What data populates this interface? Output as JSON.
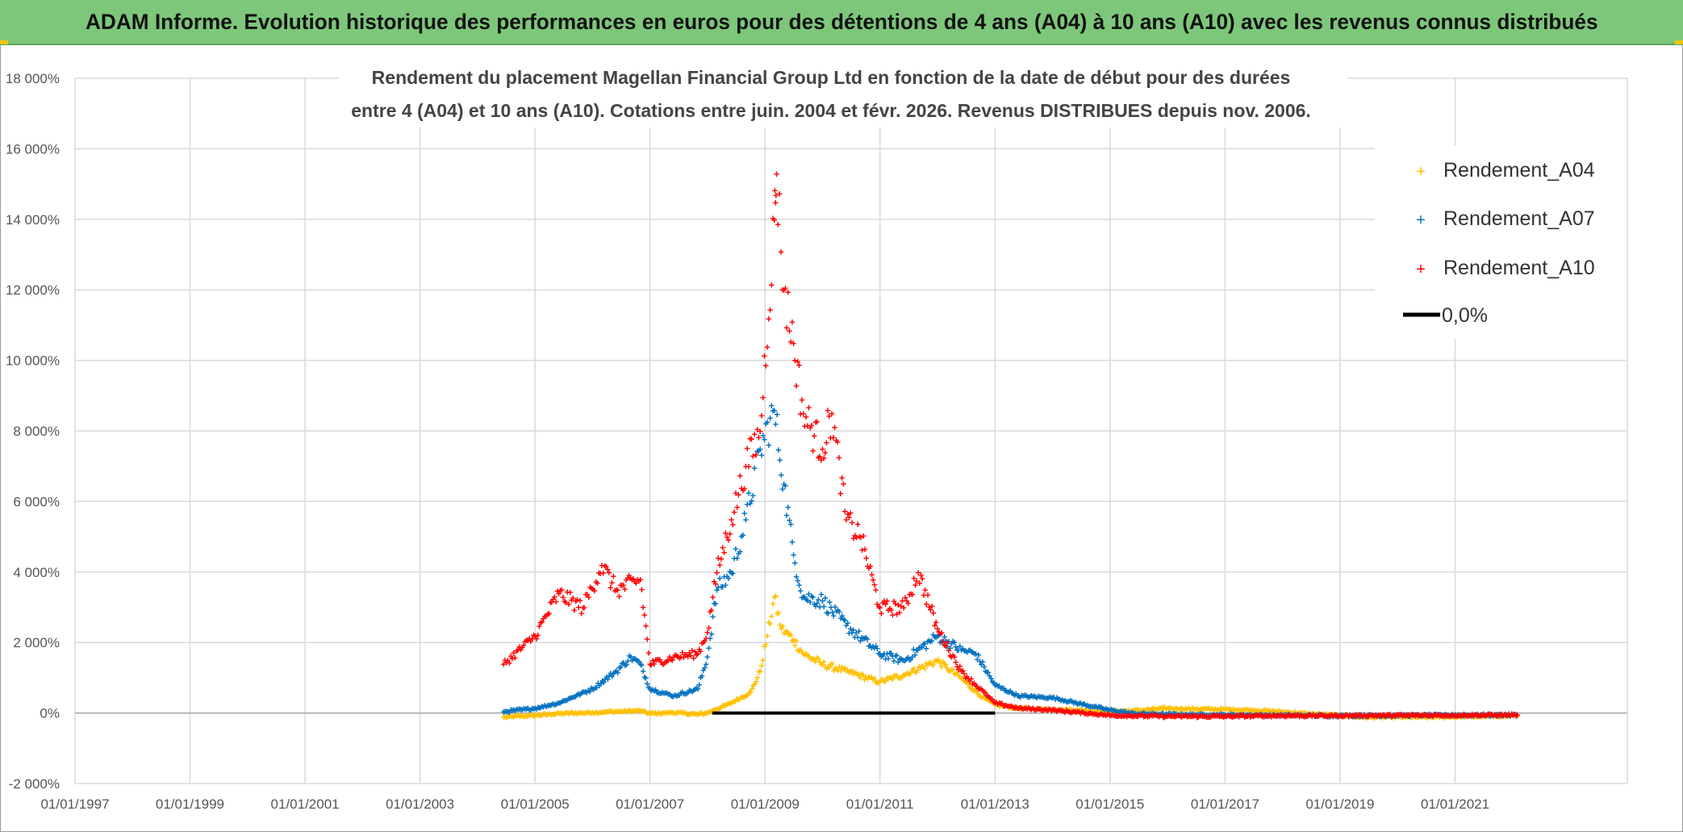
{
  "banner": {
    "title": "ADAM Informe. Evolution historique des performances en euros pour des détentions de 4 ans (A04) à 10 ans (A10) avec les revenus connus distribués"
  },
  "colors": {
    "banner_bg": "#7dc77a",
    "A04": "#ffc000",
    "A07": "#0070c0",
    "A10": "#ff0000",
    "zero_line": "#000000",
    "grid": "#d9d9d9",
    "axis": "#a6a6a6"
  },
  "chart_data": {
    "type": "scatter",
    "title_lines": [
      "Rendement du placement Magellan Financial Group Ltd en fonction de la date de début pour des durées",
      "entre 4 (A04) et 10 ans (A10). Cotations entre juin. 2004 et févr. 2026. Revenus DISTRIBUES depuis nov. 2006."
    ],
    "x_axis": {
      "type": "date",
      "min": "1997-01-01",
      "max": "2023-12-31",
      "ticks": [
        "01/01/1997",
        "01/01/1999",
        "01/01/2001",
        "01/01/2003",
        "01/01/2005",
        "01/01/2007",
        "01/01/2009",
        "01/01/2011",
        "01/01/2013",
        "01/01/2015",
        "01/01/2017",
        "01/01/2019",
        "01/01/2021"
      ],
      "tick_dates": [
        "1997-01-01",
        "1999-01-01",
        "2001-01-01",
        "2003-01-01",
        "2005-01-01",
        "2007-01-01",
        "2009-01-01",
        "2011-01-01",
        "2013-01-01",
        "2015-01-01",
        "2017-01-01",
        "2019-01-01",
        "2021-01-01"
      ]
    },
    "y_axis": {
      "min": -2000,
      "max": 18000,
      "unit": "%",
      "ticks": [
        -2000,
        0,
        2000,
        4000,
        6000,
        8000,
        10000,
        12000,
        14000,
        16000,
        18000
      ],
      "tick_labels": [
        "-2 000%",
        "0%",
        "2 000%",
        "4 000%",
        "6 000%",
        "8 000%",
        "10 000%",
        "12 000%",
        "14 000%",
        "16 000%",
        "18 000%"
      ]
    },
    "grid": true,
    "legend_position": "top-right",
    "series": [
      {
        "name": "Rendement_A04",
        "marker": "+",
        "points": [
          [
            "2004-06-15",
            -100
          ],
          [
            "2005-01-01",
            -50
          ],
          [
            "2005-06-01",
            0
          ],
          [
            "2006-01-01",
            30
          ],
          [
            "2006-06-01",
            60
          ],
          [
            "2006-11-01",
            80
          ],
          [
            "2007-01-01",
            0
          ],
          [
            "2007-06-01",
            30
          ],
          [
            "2007-11-01",
            -20
          ],
          [
            "2008-01-01",
            20
          ],
          [
            "2008-06-01",
            300
          ],
          [
            "2008-10-01",
            600
          ],
          [
            "2008-12-01",
            1200
          ],
          [
            "2009-01-15",
            2200
          ],
          [
            "2009-03-01",
            3300
          ],
          [
            "2009-04-15",
            2400
          ],
          [
            "2009-07-01",
            2100
          ],
          [
            "2009-09-01",
            1700
          ],
          [
            "2010-01-01",
            1400
          ],
          [
            "2010-06-01",
            1200
          ],
          [
            "2011-01-01",
            900
          ],
          [
            "2011-06-01",
            1100
          ],
          [
            "2012-01-01",
            1500
          ],
          [
            "2012-03-01",
            1300
          ],
          [
            "2012-06-01",
            1000
          ],
          [
            "2012-10-01",
            500
          ],
          [
            "2013-01-01",
            250
          ],
          [
            "2013-06-01",
            150
          ],
          [
            "2014-01-01",
            120
          ],
          [
            "2014-06-01",
            100
          ],
          [
            "2015-01-01",
            60
          ],
          [
            "2015-06-01",
            80
          ],
          [
            "2016-01-01",
            150
          ],
          [
            "2016-06-01",
            130
          ],
          [
            "2017-01-01",
            120
          ],
          [
            "2017-06-01",
            100
          ],
          [
            "2018-01-01",
            50
          ],
          [
            "2018-06-01",
            0
          ],
          [
            "2019-06-01",
            -100
          ],
          [
            "2020-06-01",
            -100
          ],
          [
            "2021-06-01",
            -80
          ],
          [
            "2022-02-01",
            -60
          ]
        ]
      },
      {
        "name": "Rendement_A07",
        "marker": "+",
        "points": [
          [
            "2004-06-15",
            50
          ],
          [
            "2005-01-01",
            150
          ],
          [
            "2005-06-01",
            300
          ],
          [
            "2006-01-01",
            700
          ],
          [
            "2006-06-01",
            1200
          ],
          [
            "2006-09-01",
            1600
          ],
          [
            "2006-11-01",
            1400
          ],
          [
            "2007-01-01",
            700
          ],
          [
            "2007-06-01",
            500
          ],
          [
            "2007-11-01",
            700
          ],
          [
            "2008-01-01",
            1600
          ],
          [
            "2008-03-01",
            3500
          ],
          [
            "2008-06-01",
            4000
          ],
          [
            "2008-09-01",
            5500
          ],
          [
            "2008-12-01",
            7500
          ],
          [
            "2009-03-01",
            8600
          ],
          [
            "2009-05-01",
            6500
          ],
          [
            "2009-07-01",
            4500
          ],
          [
            "2009-09-01",
            3300
          ],
          [
            "2010-01-01",
            3200
          ],
          [
            "2010-06-01",
            2500
          ],
          [
            "2011-01-01",
            1700
          ],
          [
            "2011-06-01",
            1500
          ],
          [
            "2012-01-01",
            2200
          ],
          [
            "2012-06-01",
            1800
          ],
          [
            "2012-09-01",
            1700
          ],
          [
            "2013-01-01",
            800
          ],
          [
            "2013-06-01",
            500
          ],
          [
            "2014-01-01",
            450
          ],
          [
            "2014-06-01",
            300
          ],
          [
            "2015-01-01",
            100
          ],
          [
            "2015-06-01",
            0
          ],
          [
            "2016-01-01",
            -20
          ],
          [
            "2017-01-01",
            -40
          ],
          [
            "2018-01-01",
            -50
          ],
          [
            "2019-01-01",
            -60
          ],
          [
            "2020-06-01",
            -50
          ],
          [
            "2022-02-01",
            -40
          ]
        ]
      },
      {
        "name": "Rendement_A10",
        "marker": "+",
        "points": [
          [
            "2004-06-15",
            1400
          ],
          [
            "2005-01-01",
            2200
          ],
          [
            "2005-06-01",
            3400
          ],
          [
            "2005-11-01",
            3000
          ],
          [
            "2006-03-01",
            4200
          ],
          [
            "2006-06-01",
            3500
          ],
          [
            "2006-11-01",
            3800
          ],
          [
            "2007-01-01",
            1400
          ],
          [
            "2007-06-01",
            1600
          ],
          [
            "2007-11-01",
            1700
          ],
          [
            "2008-01-01",
            2300
          ],
          [
            "2008-03-01",
            4000
          ],
          [
            "2008-06-01",
            5500
          ],
          [
            "2008-09-01",
            7000
          ],
          [
            "2008-12-01",
            8000
          ],
          [
            "2009-03-01",
            14000
          ],
          [
            "2009-03-15",
            15300
          ],
          [
            "2009-05-01",
            12000
          ],
          [
            "2009-07-01",
            10500
          ],
          [
            "2009-09-01",
            8500
          ],
          [
            "2010-01-01",
            7500
          ],
          [
            "2010-03-01",
            8500
          ],
          [
            "2010-06-01",
            5500
          ],
          [
            "2010-09-01",
            5000
          ],
          [
            "2011-01-01",
            3000
          ],
          [
            "2011-06-01",
            3000
          ],
          [
            "2011-09-01",
            4000
          ],
          [
            "2012-01-01",
            2400
          ],
          [
            "2012-06-01",
            1200
          ],
          [
            "2013-01-01",
            300
          ],
          [
            "2013-06-01",
            150
          ],
          [
            "2014-01-01",
            100
          ],
          [
            "2015-01-01",
            -50
          ],
          [
            "2016-01-01",
            -80
          ],
          [
            "2017-01-01",
            -80
          ],
          [
            "2018-01-01",
            -60
          ],
          [
            "2019-01-01",
            -60
          ],
          [
            "2020-06-01",
            -50
          ],
          [
            "2022-02-01",
            -40
          ]
        ]
      },
      {
        "name": "0,0%",
        "marker": "line",
        "points": [
          [
            "2008-02-01",
            0
          ],
          [
            "2013-01-01",
            0
          ]
        ]
      }
    ]
  }
}
